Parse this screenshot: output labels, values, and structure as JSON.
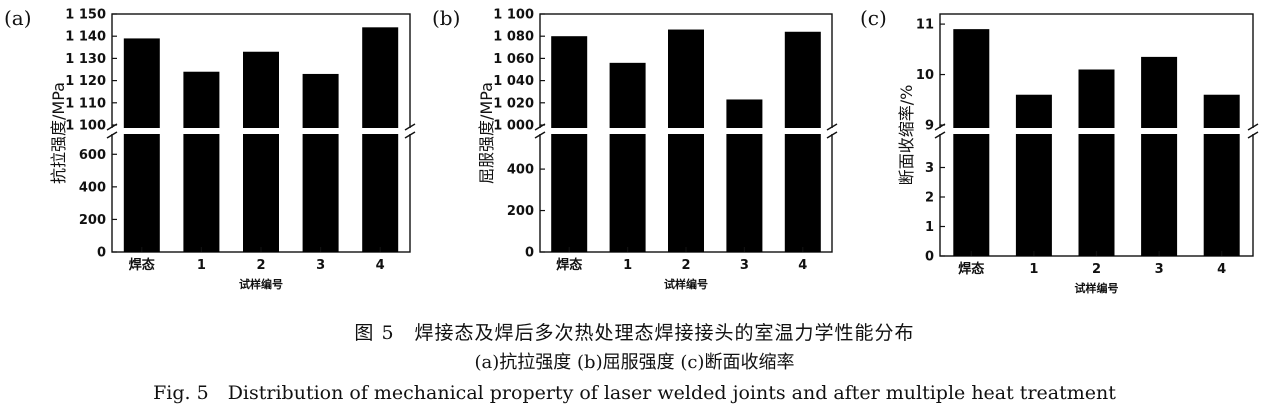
{
  "chart_data": [
    {
      "type": "bar",
      "panel_label": "(a)",
      "categories": [
        "焊态",
        "1",
        "2",
        "3",
        "4"
      ],
      "values": [
        1139,
        1124,
        1133,
        1123,
        1144
      ],
      "xlabel": "试样编号",
      "ylabel": "抗拉强度/MPa",
      "axis_break": true,
      "lower_range": [
        0,
        700
      ],
      "upper_range": [
        1100,
        1150
      ],
      "lower_ticks": [
        0,
        200,
        400,
        600
      ],
      "upper_ticks": [
        1100,
        1110,
        1120,
        1130,
        1140,
        1150
      ],
      "lower_tick_labels": [
        "0",
        "200",
        "400",
        "600"
      ],
      "upper_tick_labels": [
        "1 100",
        "1 110",
        "1 120",
        "1 130",
        "1 140",
        "1 150"
      ],
      "grid": false,
      "bar_color": "#000000"
    },
    {
      "type": "bar",
      "panel_label": "(b)",
      "categories": [
        "焊态",
        "1",
        "2",
        "3",
        "4"
      ],
      "values": [
        1080,
        1056,
        1086,
        1023,
        1084
      ],
      "xlabel": "试样编号",
      "ylabel": "屈服强度/MPa",
      "axis_break": true,
      "lower_range": [
        0,
        550
      ],
      "upper_range": [
        1000,
        1100
      ],
      "lower_ticks": [
        0,
        200,
        400
      ],
      "upper_ticks": [
        1000,
        1020,
        1040,
        1060,
        1080,
        1100
      ],
      "lower_tick_labels": [
        "0",
        "200",
        "400"
      ],
      "upper_tick_labels": [
        "1 000",
        "1 020",
        "1 040",
        "1 060",
        "1 080",
        "1 100"
      ],
      "grid": false,
      "bar_color": "#000000"
    },
    {
      "type": "bar",
      "panel_label": "(c)",
      "categories": [
        "焊态",
        "1",
        "2",
        "3",
        "4"
      ],
      "values": [
        10.9,
        9.6,
        10.1,
        10.35,
        9.6
      ],
      "xlabel": "试样编号",
      "ylabel": "断面收缩率/%",
      "axis_break": true,
      "lower_range": [
        0,
        4
      ],
      "upper_range": [
        9,
        11.2
      ],
      "lower_ticks": [
        0,
        1,
        2,
        3
      ],
      "upper_ticks": [
        9,
        10,
        11
      ],
      "lower_tick_labels": [
        "0",
        "1",
        "2",
        "3"
      ],
      "upper_tick_labels": [
        "9",
        "10",
        "11"
      ],
      "grid": false,
      "bar_color": "#000000"
    }
  ],
  "caption": {
    "zh": "图 5　焊接态及焊后多次热处理态焊接接头的室温力学性能分布",
    "sub": "(a)抗拉强度 (b)屈服强度 (c)断面收缩率",
    "en": "Fig. 5　Distribution of mechanical property of laser welded joints and after multiple heat treatment"
  }
}
